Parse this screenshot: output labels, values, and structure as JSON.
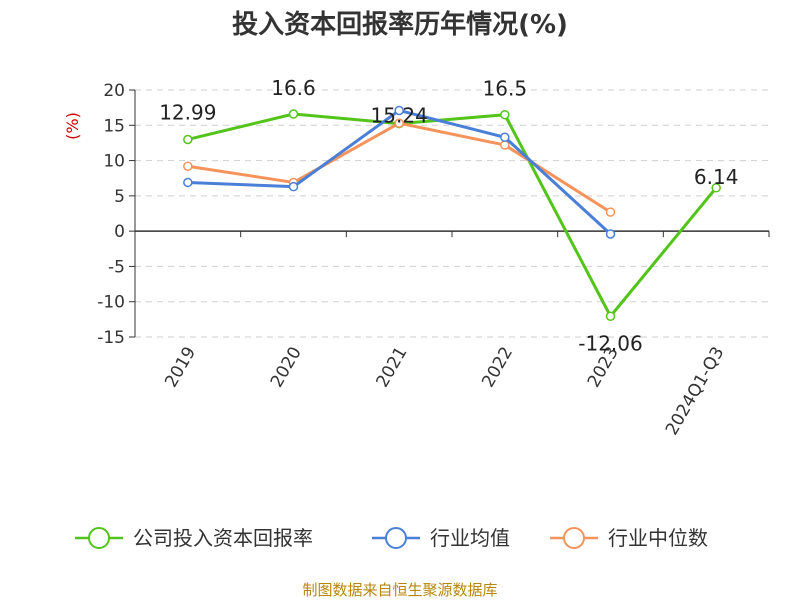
{
  "chart_data": {
    "type": "line",
    "title": "投入资本回报率历年情况(%)",
    "unit_label": "(%)",
    "categories": [
      "2019",
      "2020",
      "2021",
      "2022",
      "2023",
      "2024Q1-Q3"
    ],
    "ylim": [
      -15,
      20
    ],
    "yticks": [
      20,
      15,
      10,
      5,
      0,
      -5,
      -10,
      -15
    ],
    "grid": true,
    "legend_position": "bottom",
    "series": [
      {
        "name": "公司投入资本回报率",
        "color": "#52c41a",
        "values": [
          12.99,
          16.6,
          15.24,
          16.5,
          -12.06,
          6.14
        ],
        "labels": [
          "12.99",
          "16.6",
          "15.24",
          "16.5",
          "-12.06",
          "6.14"
        ]
      },
      {
        "name": "行业均值",
        "color": "#4a7fd8",
        "values": [
          6.9,
          6.3,
          17.1,
          13.3,
          -0.4,
          null
        ]
      },
      {
        "name": "行业中位数",
        "color": "#f5935a",
        "values": [
          9.2,
          6.9,
          15.3,
          12.2,
          2.7,
          null
        ]
      }
    ]
  },
  "source": "制图数据来自恒生聚源数据库"
}
